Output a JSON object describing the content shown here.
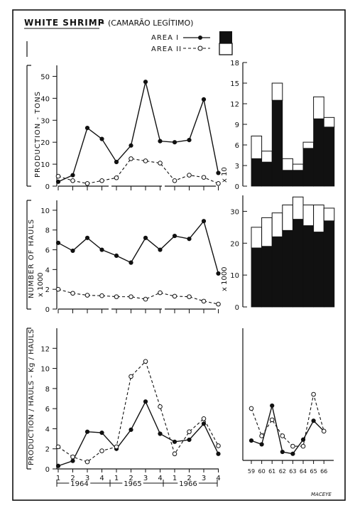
{
  "title": "WHITE SHRIMP",
  "subtitle": "(CAMARÃO LEGÍTIMO)",
  "legend": [
    {
      "name": "AREA I",
      "line": "solid",
      "marker": "filled-circle",
      "bar": "black"
    },
    {
      "name": "AREA II",
      "line": "dashed",
      "marker": "open-circle",
      "bar": "white"
    }
  ],
  "credit": "MACEYE",
  "chart_data": [
    {
      "id": "production",
      "type": "line",
      "ylabel": "PRODUCTION - TONS",
      "ylim": [
        0,
        55
      ],
      "yticks": [
        0,
        10,
        20,
        30,
        40,
        50
      ],
      "x": [
        1,
        2,
        3,
        4,
        5,
        6,
        7,
        8,
        9,
        10,
        11,
        12
      ],
      "series": [
        {
          "name": "AREA I",
          "values": [
            2,
            5,
            26.5,
            21.5,
            11,
            18.5,
            47.5,
            20.5,
            20,
            21,
            39.5,
            6
          ]
        },
        {
          "name": "AREA II",
          "values": [
            4.5,
            2.5,
            1.2,
            2.5,
            3.8,
            12.5,
            11.5,
            10.5,
            2.5,
            5,
            4,
            1.2
          ]
        }
      ]
    },
    {
      "id": "hauls",
      "type": "line",
      "ylabel": "NUMBER OF HAULS",
      "yunit": "x 1000",
      "ylim": [
        0,
        11
      ],
      "yticks": [
        0,
        2,
        4,
        6,
        8,
        10
      ],
      "x": [
        1,
        2,
        3,
        4,
        5,
        6,
        7,
        8,
        9,
        10,
        11,
        12
      ],
      "series": [
        {
          "name": "AREA I",
          "values": [
            6.7,
            5.9,
            7.2,
            6.0,
            5.4,
            4.7,
            7.2,
            6.0,
            7.4,
            7.1,
            8.9,
            3.6
          ]
        },
        {
          "name": "AREA II",
          "values": [
            2.0,
            1.6,
            1.4,
            1.35,
            1.25,
            1.25,
            1.0,
            1.65,
            1.3,
            1.25,
            0.8,
            0.5
          ]
        }
      ]
    },
    {
      "id": "cpue",
      "type": "line",
      "ylabel": "PRODUCTION / HAULS - Kg / HAULS",
      "ylim": [
        0,
        14
      ],
      "yticks": [
        0,
        2,
        4,
        6,
        8,
        10,
        12
      ],
      "x": [
        1,
        2,
        3,
        4,
        5,
        6,
        7,
        8,
        9,
        10,
        11,
        12
      ],
      "xticks": [
        "1",
        "2",
        "3",
        "4",
        "1",
        "2",
        "3",
        "4",
        "1",
        "2",
        "3",
        "4"
      ],
      "xgroups": [
        "1964",
        "1965",
        "1966"
      ],
      "series": [
        {
          "name": "AREA I",
          "values": [
            0.3,
            0.8,
            3.7,
            3.6,
            2.0,
            3.9,
            6.7,
            3.5,
            2.7,
            2.9,
            4.5,
            1.5
          ]
        },
        {
          "name": "AREA II",
          "values": [
            2.2,
            1.2,
            0.7,
            1.8,
            2.2,
            9.2,
            10.7,
            6.2,
            1.5,
            3.7,
            5.0,
            2.3
          ]
        }
      ]
    },
    {
      "id": "annual-production",
      "type": "bar",
      "stacked": true,
      "ylim": [
        0,
        18
      ],
      "yticks": [
        0,
        3,
        6,
        9,
        12,
        15,
        18
      ],
      "yunit": "x 10",
      "categories": [
        "59",
        "60",
        "61",
        "62",
        "63",
        "64",
        "65",
        "66"
      ],
      "series": [
        {
          "name": "AREA I",
          "values": [
            4,
            3.5,
            12.5,
            2.3,
            2.3,
            5.5,
            9.8,
            8.6
          ]
        },
        {
          "name": "AREA II",
          "values": [
            3.3,
            1.6,
            2.5,
            1.7,
            0.9,
            0.9,
            3.2,
            1.4
          ]
        }
      ]
    },
    {
      "id": "annual-hauls",
      "type": "bar",
      "stacked": true,
      "ylim": [
        0,
        35
      ],
      "yticks": [
        0,
        10,
        20,
        30
      ],
      "yunit": "x 1000",
      "categories": [
        "59",
        "60",
        "61",
        "62",
        "63",
        "64",
        "65",
        "66"
      ],
      "series": [
        {
          "name": "AREA I",
          "values": [
            18.5,
            19,
            22,
            24,
            27.5,
            25.5,
            23.5,
            27
          ]
        },
        {
          "name": "AREA II",
          "values": [
            6.5,
            9,
            7.5,
            8,
            7,
            6.5,
            8.5,
            4
          ]
        }
      ]
    },
    {
      "id": "annual-cpue",
      "type": "line",
      "ylim": [
        0,
        14
      ],
      "categories": [
        "59",
        "60",
        "61",
        "62",
        "63",
        "64",
        "65",
        "66"
      ],
      "series": [
        {
          "name": "AREA I",
          "values": [
            2.1,
            1.7,
            5.8,
            0.9,
            0.7,
            2.2,
            4.2,
            3.1
          ]
        },
        {
          "name": "AREA II",
          "values": [
            5.5,
            2.6,
            4.3,
            2.6,
            1.5,
            1.5,
            7.0,
            3.1
          ]
        }
      ]
    }
  ]
}
